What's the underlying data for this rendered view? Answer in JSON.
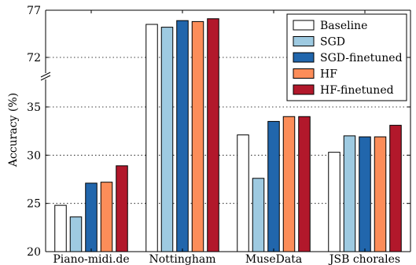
{
  "chart_data": {
    "type": "bar",
    "ylabel": "Accuracy (%)",
    "categories": [
      "Piano-midi.de",
      "Nottingham",
      "MuseData",
      "JSB chorales"
    ],
    "series": [
      {
        "name": "Baseline",
        "color": "#ffffff",
        "values": [
          24.8,
          75.5,
          32.1,
          30.3
        ]
      },
      {
        "name": "SGD",
        "color": "#9ecae1",
        "values": [
          23.6,
          75.2,
          27.6,
          32.0
        ]
      },
      {
        "name": "SGD-finetuned",
        "color": "#2166ac",
        "values": [
          27.1,
          75.9,
          33.5,
          31.9
        ]
      },
      {
        "name": "HF",
        "color": "#fc8d59",
        "values": [
          27.2,
          75.8,
          34.0,
          31.9
        ]
      },
      {
        "name": "HF-finetuned",
        "color": "#b2182b",
        "values": [
          28.9,
          76.1,
          34.0,
          33.1
        ]
      }
    ],
    "axis_break": true,
    "lower_range": [
      20,
      35
    ],
    "lower_ticks": [
      "20",
      "25",
      "30",
      "35"
    ],
    "upper_range": [
      72,
      77
    ],
    "upper_ticks": [
      "72",
      "77"
    ],
    "grid": "y-dotted",
    "legend_position": "top-right"
  }
}
